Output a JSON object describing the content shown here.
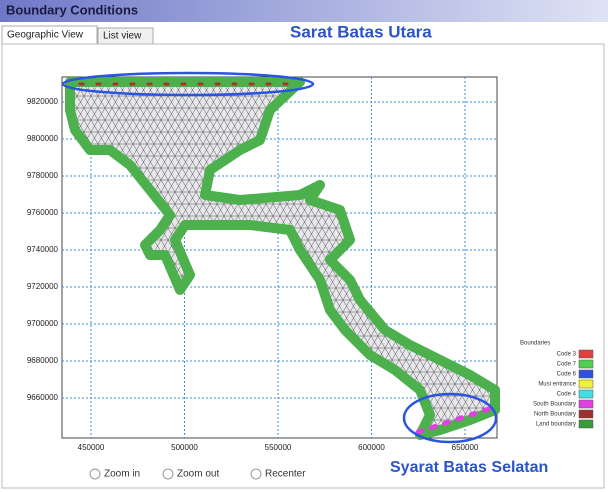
{
  "header": {
    "title": "Boundary Conditions"
  },
  "tabs": [
    "Geographic View",
    "List view"
  ],
  "annotations": {
    "north": "Sarat Batas Utara",
    "south": "Syarat Batas Selatan"
  },
  "map": {
    "xlim": [
      434500,
      667100
    ],
    "ylim": [
      9638400,
      9833500
    ],
    "xticks": [
      450000,
      500000,
      550000,
      600000,
      650000
    ],
    "yticks": [
      9820000,
      9800000,
      9780000,
      9760000,
      9740000,
      9720000,
      9700000,
      9680000,
      9660000
    ],
    "grid": true
  },
  "legend": {
    "title": "Boundaries",
    "items": [
      {
        "name": "Code 3",
        "color": "#e04040"
      },
      {
        "name": "Code 7",
        "color": "#50d050"
      },
      {
        "name": "Code 6",
        "color": "#3050e0"
      },
      {
        "name": "Musi entrance",
        "color": "#f0f040"
      },
      {
        "name": "Code 4",
        "color": "#40e0e0"
      },
      {
        "name": "South Boundary",
        "color": "#e040e0"
      },
      {
        "name": "North Boundary",
        "color": "#a03030"
      },
      {
        "name": "Land boundary",
        "color": "#3a9a3a"
      }
    ]
  },
  "controls": [
    "Zoom in",
    "Zoom out",
    "Recenter"
  ]
}
